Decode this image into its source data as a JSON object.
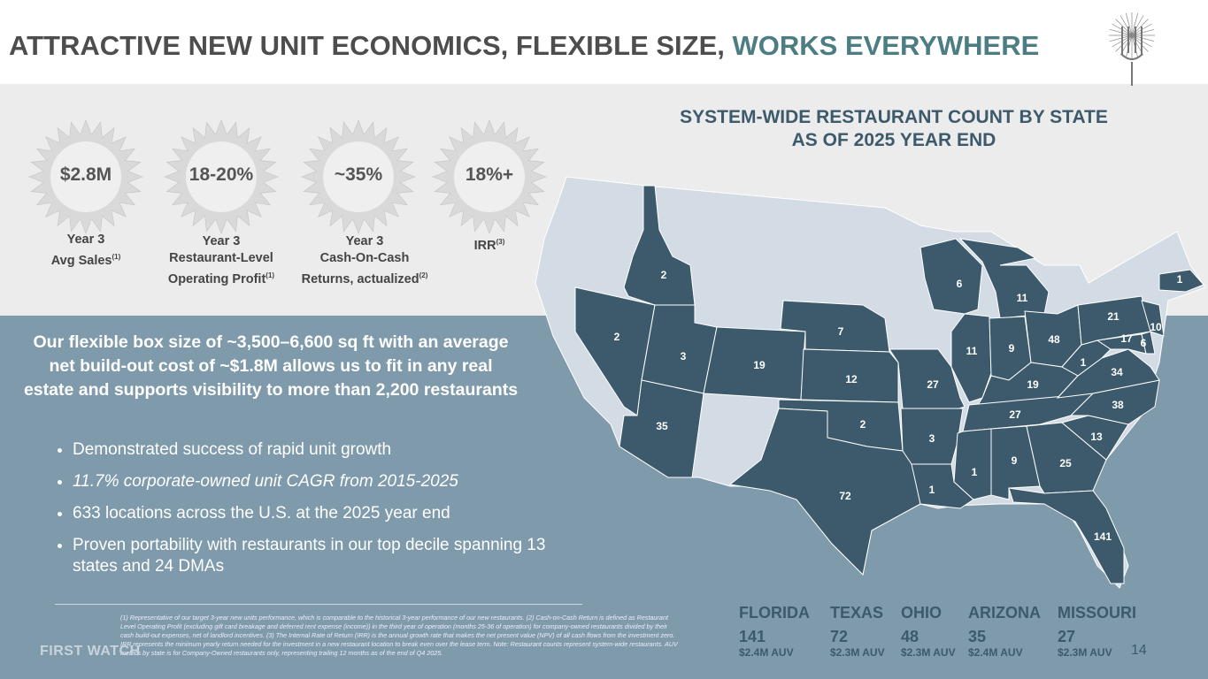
{
  "header": {
    "title": "ATTRACTIVE NEW UNIT ECONOMICS, FLEXIBLE SIZE,",
    "title_highlight": "WORKS EVERYWHERE"
  },
  "metrics": [
    {
      "value": "$2.8M",
      "lines": [
        "Year 3",
        "Avg Sales"
      ],
      "note": "(1)"
    },
    {
      "value": "18-20%",
      "lines": [
        "Year 3",
        "Restaurant-Level",
        "Operating Profit"
      ],
      "note": "(1)"
    },
    {
      "value": "~35%",
      "lines": [
        "Year 3",
        "Cash-On-Cash",
        "Returns, actualized"
      ],
      "note": "(2)"
    },
    {
      "value": "18%+",
      "lines": [
        "IRR"
      ],
      "note": "(3)"
    }
  ],
  "body": {
    "heading": "Our flexible box size of ~3,500–6,600 sq ft with an average net build-out cost of ~$1.8M allows us to fit in any real estate and supports visibility to more than 2,200 restaurants",
    "bullets": [
      "Demonstrated success of rapid unit growth",
      "11.7% corporate-owned unit CAGR from 2015-2025",
      "633 locations across the U.S. at the 2025 year end",
      "Proven portability with restaurants in our top decile spanning 13 states and 24 DMAs"
    ]
  },
  "map": {
    "title_lines": [
      "SYSTEM-WIDE RESTAURANT COUNT BY STATE",
      "AS OF 2025 YEAR END"
    ],
    "counts": [
      2,
      2,
      3,
      35,
      19,
      7,
      12,
      2,
      72,
      27,
      3,
      1,
      6,
      11,
      11,
      9,
      48,
      19,
      27,
      1,
      9,
      25,
      141,
      13,
      38,
      34,
      1,
      21,
      17,
      6,
      10,
      1
    ]
  },
  "states": [
    {
      "name": "FLORIDA",
      "count": "141",
      "auv": "$2.4M AUV"
    },
    {
      "name": "TEXAS",
      "count": "72",
      "auv": "$2.3M AUV"
    },
    {
      "name": "OHIO",
      "count": "48",
      "auv": "$2.3M AUV"
    },
    {
      "name": "ARIZONA",
      "count": "35",
      "auv": "$2.4M AUV"
    },
    {
      "name": "MISSOURI",
      "count": "27",
      "auv": "$2.3M AUV"
    }
  ],
  "footer": {
    "logo": "FIRST WATCH",
    "footnote": "(1) Representative of our target 3-year new units performance, which is comparable to the historical 3-year performance of our new restaurants. (2) Cash-on-Cash Return is defined as Restaurant Level Operating Profit (excluding gift card breakage and deferred rent expense (income)) in the third year of operation (months 25-36 of operation) for company-owned restaurants divided by their cash build-out expenses, net of landlord incentives. (3) The Internal Rate of Return (IRR) is the annual growth rate that makes the net present value (NPV) of all cash flows from the investment zero. IRR represents the minimum yearly return needed for the investment in a new restaurant location to break even over the lease term. Note: Restaurant counts represent system-wide restaurants. AUV metrics by state is for Company-Owned restaurants only, representing trailing 12 months as of the end of Q4 2025.",
    "page": "14"
  }
}
